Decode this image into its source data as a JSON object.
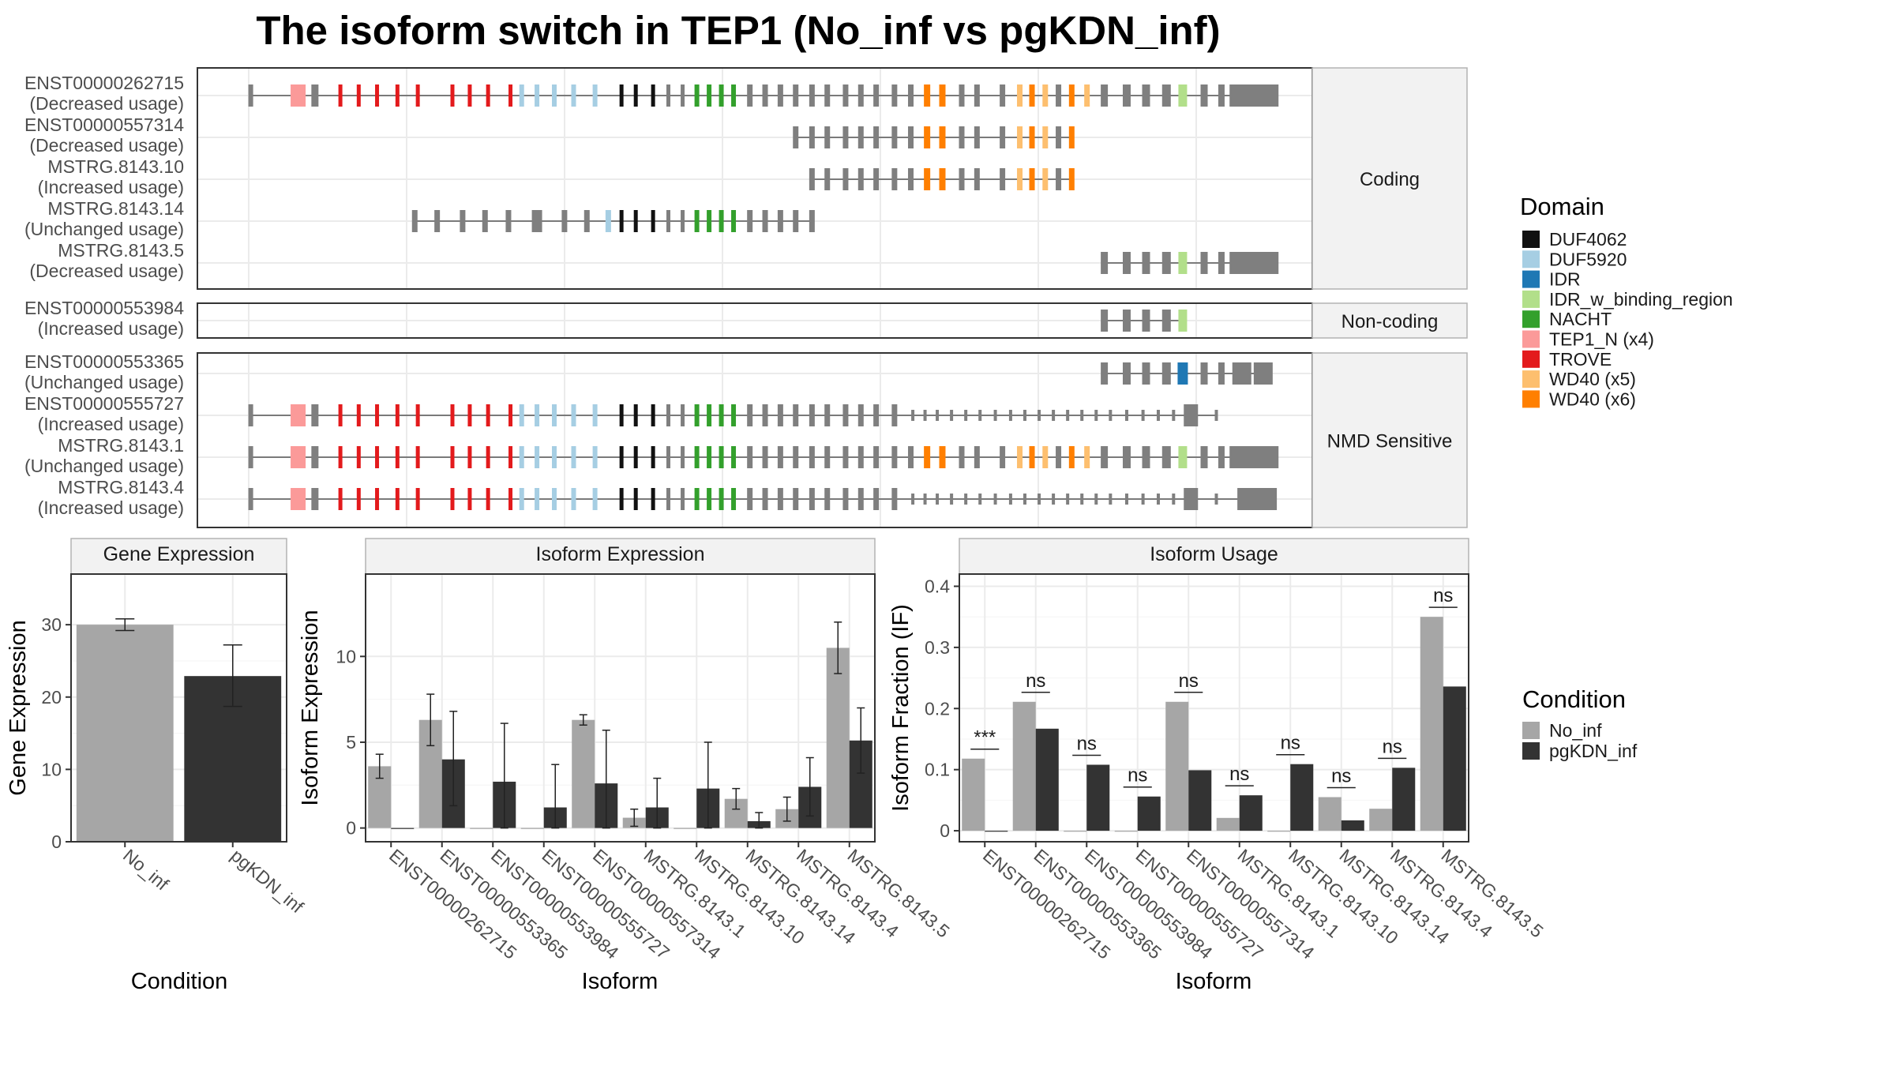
{
  "title": "The isoform switch in TEP1 (No_inf vs pgKDN_inf)",
  "colors": {
    "no_inf": "#a6a6a6",
    "pgkdn_inf": "#333333",
    "exon": "#7f7f7f",
    "intron": "#555555",
    "grid": "#ebebeb",
    "strip": "#f2f2f2",
    "border": "#333333"
  },
  "domain_legend": {
    "title": "Domain",
    "items": [
      {
        "label": "DUF4062",
        "color": "#111111"
      },
      {
        "label": "DUF5920",
        "color": "#a6cee3"
      },
      {
        "label": "IDR",
        "color": "#1f78b4"
      },
      {
        "label": "IDR_w_binding_region",
        "color": "#b2df8a"
      },
      {
        "label": "NACHT",
        "color": "#33a02c"
      },
      {
        "label": "TEP1_N (x4)",
        "color": "#fb9a99"
      },
      {
        "label": "TROVE",
        "color": "#e31a1c"
      },
      {
        "label": "WD40 (x5)",
        "color": "#fdbf6f"
      },
      {
        "label": "WD40 (x6)",
        "color": "#ff7f00"
      }
    ]
  },
  "condition_legend": {
    "title": "Condition",
    "items": [
      {
        "label": "No_inf",
        "color": "#a6a6a6"
      },
      {
        "label": "pgKDN_inf",
        "color": "#333333"
      }
    ]
  },
  "structure": {
    "groups": [
      {
        "label": "Coding",
        "tracks": [
          {
            "id": "ENST00000262715",
            "usage": "(Decreased usage)",
            "template": "full",
            "start": 0,
            "end": 1
          },
          {
            "id": "ENST00000557314",
            "usage": "(Decreased usage)",
            "template": "full",
            "start": 0.525,
            "end": 0.815
          },
          {
            "id": "MSTRG.8143.10",
            "usage": "(Increased usage)",
            "template": "full",
            "start": 0.548,
            "end": 0.815
          },
          {
            "id": "MSTRG.8143.14",
            "usage": "(Unchanged usage)",
            "template": "mid",
            "start": 0.145,
            "end": 0.565
          },
          {
            "id": "MSTRG.8143.5",
            "usage": "(Decreased usage)",
            "template": "full",
            "start": 0.83,
            "end": 1
          }
        ]
      },
      {
        "label": "Non-coding",
        "tracks": [
          {
            "id": "ENST00000553984",
            "usage": "(Increased usage)",
            "template": "full",
            "start": 0.83,
            "end": 0.92
          }
        ]
      },
      {
        "label": "NMD Sensitive",
        "tracks": [
          {
            "id": "ENST00000553365",
            "usage": "(Unchanged usage)",
            "template": "idr",
            "start": 0.83,
            "end": 1
          },
          {
            "id": "ENST00000555727",
            "usage": "(Increased usage)",
            "template": "nmd",
            "start": 0,
            "end": 0.955
          },
          {
            "id": "MSTRG.8143.1",
            "usage": "(Unchanged usage)",
            "template": "full",
            "start": 0,
            "end": 1
          },
          {
            "id": "MSTRG.8143.4",
            "usage": "(Increased usage)",
            "template": "nmd",
            "start": 0,
            "end": 1
          }
        ]
      }
    ]
  },
  "chart_data": [
    {
      "type": "bar",
      "title": "Gene Expression",
      "xlabel": "Condition",
      "ylabel": "Gene Expression",
      "categories": [
        "No_inf",
        "pgKDN_inf"
      ],
      "values": [
        30.0,
        22.9
      ],
      "error_low": [
        29.2,
        18.7
      ],
      "error_high": [
        30.8,
        27.2
      ],
      "ylim": [
        0,
        37
      ],
      "yticks": [
        0,
        10,
        20,
        30
      ]
    },
    {
      "type": "bar",
      "title": "Isoform Expression",
      "xlabel": "Isoform",
      "ylabel": "Isoform Expression",
      "categories": [
        "ENST00000262715",
        "ENST00000553365",
        "ENST00000553984",
        "ENST00000555727",
        "ENST00000557314",
        "MSTRG.8143.1",
        "MSTRG.8143.10",
        "MSTRG.8143.14",
        "MSTRG.8143.4",
        "MSTRG.8143.5"
      ],
      "ylim": [
        -0.8,
        14.8
      ],
      "yticks": [
        0,
        5,
        10
      ],
      "series": [
        {
          "name": "No_inf",
          "values": [
            3.6,
            6.3,
            0.0,
            0.0,
            6.3,
            0.6,
            0.0,
            1.7,
            1.1,
            10.5
          ],
          "error_low": [
            2.9,
            4.8,
            0,
            0,
            6.0,
            0.1,
            0,
            1.1,
            0.4,
            9.0
          ],
          "error_high": [
            4.3,
            7.8,
            0,
            0,
            6.6,
            1.1,
            0,
            2.3,
            1.8,
            12.0
          ]
        },
        {
          "name": "pgKDN_inf",
          "values": [
            0.0,
            4.0,
            2.7,
            1.2,
            2.6,
            1.2,
            2.3,
            0.4,
            2.4,
            5.1
          ],
          "error_low": [
            0,
            1.3,
            0,
            0,
            0,
            0,
            0,
            0,
            0.7,
            3.2
          ],
          "error_high": [
            0,
            6.8,
            6.1,
            3.7,
            5.7,
            2.9,
            5.0,
            0.9,
            4.1,
            7.0
          ]
        }
      ]
    },
    {
      "type": "bar",
      "title": "Isoform Usage",
      "xlabel": "Isoform",
      "ylabel": "Isoform Fraction (IF)",
      "categories": [
        "ENST00000262715",
        "ENST00000553365",
        "ENST00000553984",
        "ENST00000555727",
        "ENST00000557314",
        "MSTRG.8143.1",
        "MSTRG.8143.10",
        "MSTRG.8143.14",
        "MSTRG.8143.4",
        "MSTRG.8143.5"
      ],
      "ylim": [
        -0.018,
        0.42
      ],
      "yticks": [
        0.0,
        0.1,
        0.2,
        0.3,
        0.4
      ],
      "series": [
        {
          "name": "No_inf",
          "values": [
            0.118,
            0.211,
            0.0,
            0.0,
            0.211,
            0.021,
            0.0,
            0.055,
            0.036,
            0.35
          ]
        },
        {
          "name": "pgKDN_inf",
          "values": [
            0.0,
            0.167,
            0.108,
            0.056,
            0.099,
            0.058,
            0.109,
            0.017,
            0.103,
            0.236
          ]
        }
      ],
      "significance": [
        "***",
        "ns",
        "ns",
        "ns",
        "ns",
        "ns",
        "ns",
        "ns",
        "ns",
        "ns"
      ]
    }
  ]
}
